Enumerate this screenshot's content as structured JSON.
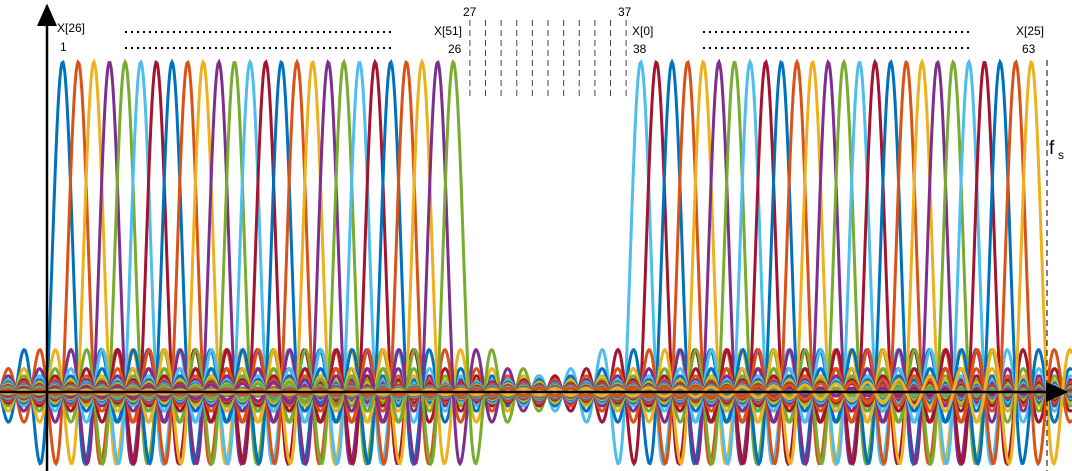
{
  "labels": {
    "left_start_symbol": "X[26]",
    "left_start_index": "1",
    "left_end_symbol": "X[51]",
    "left_end_index": "26",
    "gap_start_index": "27",
    "gap_end_index": "37",
    "right_start_symbol": "X[0]",
    "right_start_index": "38",
    "right_end_symbol": "X[25]",
    "right_end_index": "63",
    "sampling_frequency": {
      "symbol": "f",
      "subscript": "s"
    }
  }
}
